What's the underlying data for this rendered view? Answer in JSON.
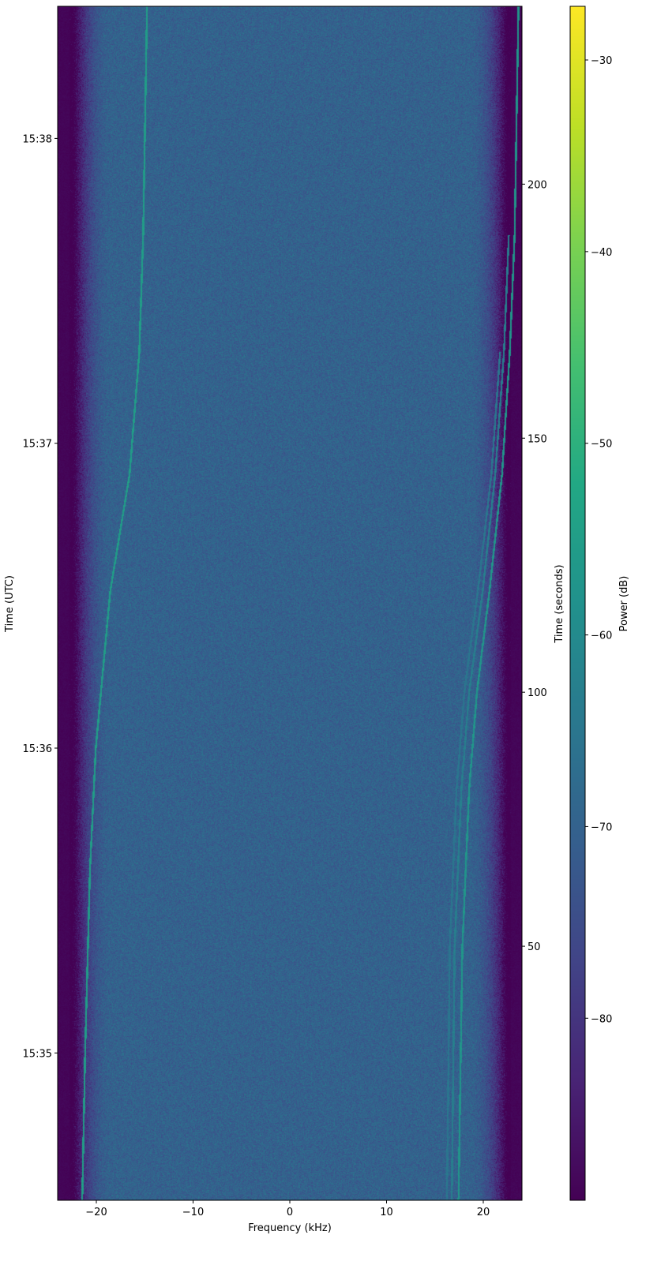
{
  "chart_data": {
    "type": "heatmap",
    "xlabel": "Frequency (kHz)",
    "ylabel_left": "Time (UTC)",
    "ylabel_right": "Time (seconds)",
    "colorbar_label": "Power (dB)",
    "colormap": "viridis",
    "xlim": [
      -24,
      24
    ],
    "ylim_seconds": [
      0,
      235
    ],
    "clim": [
      -89.5,
      -27.2
    ],
    "x_ticks": [
      -20,
      -10,
      0,
      10,
      20
    ],
    "x_tick_labels": [
      "−20",
      "−10",
      "0",
      "10",
      "20"
    ],
    "right_y_ticks": [
      50,
      100,
      150,
      200
    ],
    "right_y_tick_labels": [
      "50",
      "100",
      "150",
      "200"
    ],
    "left_y_ticks_seconds": [
      29,
      89,
      149,
      209
    ],
    "left_y_tick_labels": [
      "15:35",
      "15:36",
      "15:37",
      "15:38"
    ],
    "colorbar_ticks": [
      -80,
      -70,
      -60,
      -50,
      -40,
      -30
    ],
    "colorbar_tick_labels": [
      "−80",
      "−70",
      "−60",
      "−50",
      "−40",
      "−30"
    ],
    "noise_floor_db": -70,
    "band_edge_khz": 22.5,
    "traces": [
      {
        "strength_db": -55,
        "points": [
          [
            -21.5,
            0
          ],
          [
            -21.2,
            29
          ],
          [
            -20.7,
            65
          ],
          [
            -20.1,
            89
          ],
          [
            -18.6,
            120
          ],
          [
            -16.6,
            143
          ],
          [
            -15.6,
            167
          ],
          [
            -15.2,
            190
          ],
          [
            -14.8,
            235
          ]
        ]
      },
      {
        "strength_db": -57,
        "points": [
          [
            17.4,
            0
          ],
          [
            17.8,
            50
          ],
          [
            18.5,
            81
          ],
          [
            19.3,
            100
          ],
          [
            20.6,
            120
          ],
          [
            21.9,
            143
          ],
          [
            22.7,
            167
          ],
          [
            23.2,
            190
          ],
          [
            23.6,
            235
          ]
        ]
      },
      {
        "strength_db": -63,
        "points": [
          [
            16.7,
            0
          ],
          [
            17.0,
            50
          ],
          [
            17.7,
            81
          ],
          [
            18.5,
            100
          ],
          [
            19.9,
            120
          ],
          [
            21.2,
            143
          ],
          [
            22.1,
            167
          ],
          [
            22.6,
            190
          ]
        ]
      },
      {
        "strength_db": -65,
        "points": [
          [
            16.2,
            0
          ],
          [
            16.5,
            50
          ],
          [
            17.2,
            81
          ],
          [
            18.0,
            100
          ],
          [
            19.4,
            120
          ],
          [
            20.8,
            143
          ],
          [
            21.7,
            167
          ]
        ]
      }
    ]
  }
}
